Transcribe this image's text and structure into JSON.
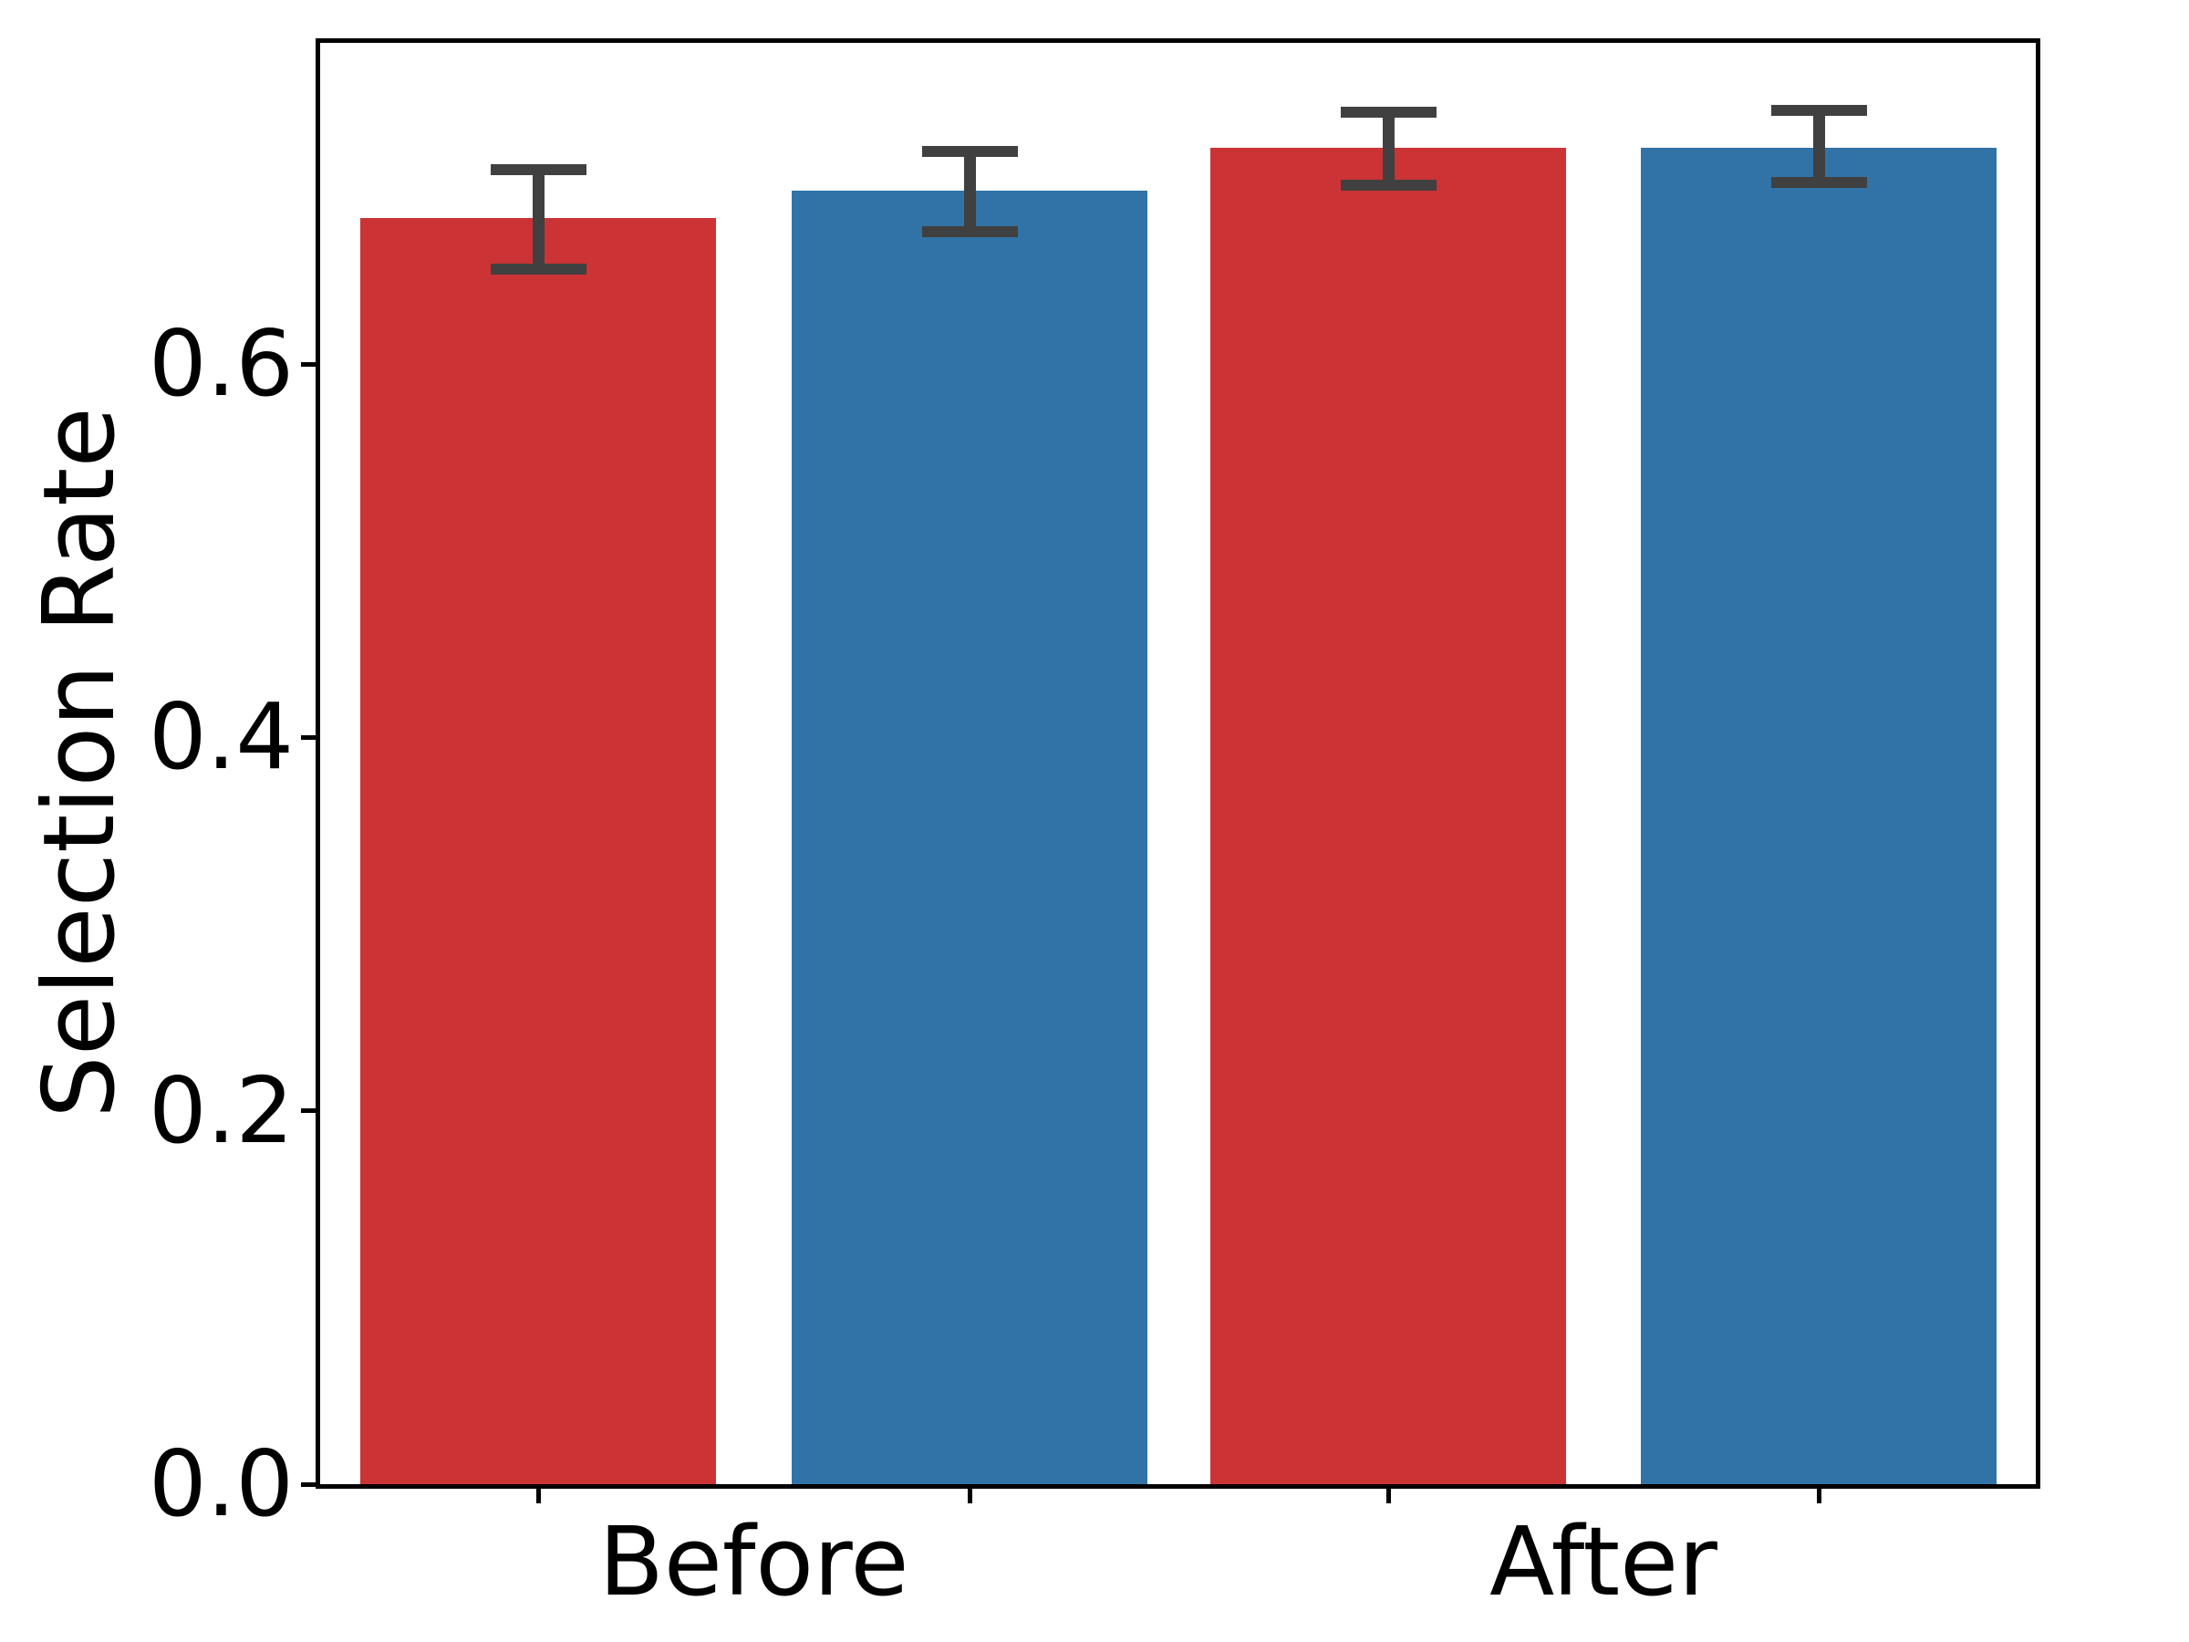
{
  "chart_data": {
    "type": "bar",
    "title": "",
    "xlabel": "",
    "ylabel": "Selection Rate",
    "categories": [
      "Before",
      "After"
    ],
    "series": [
      {
        "name": "red",
        "color": "#cb3335",
        "values": [
          0.678,
          0.716
        ],
        "error_intervals": [
          [
            0.651,
            0.704
          ],
          [
            0.696,
            0.735
          ]
        ]
      },
      {
        "name": "blue",
        "color": "#3173a6",
        "values": [
          0.693,
          0.716
        ],
        "error_intervals": [
          [
            0.671,
            0.714
          ],
          [
            0.697,
            0.736
          ]
        ]
      }
    ],
    "error_bar_color": "#404040",
    "y_ticks": [
      0,
      0.2,
      0.4,
      0.6
    ],
    "y_tick_labels": [
      "0.0",
      "0.2",
      "0.4",
      "0.6"
    ],
    "ylim": [
      0,
      0.772
    ],
    "grid": false,
    "legend": "none",
    "spine_color": "#000000",
    "background_color": "#ffffff"
  }
}
